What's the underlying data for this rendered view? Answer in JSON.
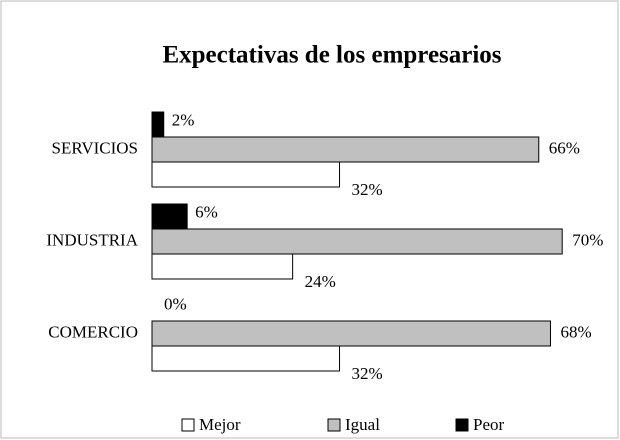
{
  "chart_data": {
    "type": "bar",
    "orientation": "horizontal",
    "title": "Expectativas de los empresarios",
    "categories": [
      "SERVICIOS",
      "INDUSTRIA",
      "COMERCIO"
    ],
    "series": [
      {
        "name": "Mejor",
        "color": "#ffffff",
        "values": [
          32,
          24,
          32
        ],
        "value_labels": [
          "32%",
          "24%",
          "32%"
        ]
      },
      {
        "name": "Igual",
        "color": "#c0c0c0",
        "values": [
          66,
          70,
          68
        ],
        "value_labels": [
          "66%",
          "70%",
          "68%"
        ]
      },
      {
        "name": "Peor",
        "color": "#000000",
        "values": [
          2,
          6,
          0
        ],
        "value_labels": [
          "2%",
          "6%",
          "0%"
        ]
      }
    ]
  }
}
